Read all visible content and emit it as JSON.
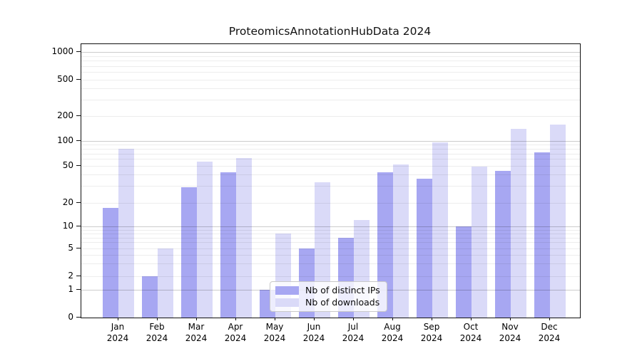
{
  "title": "ProteomicsAnnotationHubData 2024",
  "year_label": "2024",
  "legend": {
    "items": [
      {
        "label": "Nb of distinct IPs",
        "color": "#a7a7f2"
      },
      {
        "label": "Nb of downloads",
        "color": "#dadaf8"
      }
    ]
  },
  "chart_data": {
    "type": "bar",
    "title": "ProteomicsAnnotationHubData 2024",
    "categories": [
      "Jan 2024",
      "Feb 2024",
      "Mar 2024",
      "Apr 2024",
      "May 2024",
      "Jun 2024",
      "Jul 2024",
      "Aug 2024",
      "Sep 2024",
      "Oct 2024",
      "Nov 2024",
      "Dec 2024"
    ],
    "month_labels": [
      "Jan",
      "Feb",
      "Mar",
      "Apr",
      "May",
      "Jun",
      "Jul",
      "Aug",
      "Sep",
      "Oct",
      "Nov",
      "Dec"
    ],
    "series": [
      {
        "name": "Nb of distinct IPs",
        "color": "#a7a7f2",
        "values": [
          17,
          2,
          29,
          42,
          1,
          5,
          7,
          42,
          36,
          10,
          44,
          72
        ]
      },
      {
        "name": "Nb of downloads",
        "color": "#dadaf8",
        "values": [
          80,
          5,
          56,
          61,
          8,
          33,
          12,
          52,
          95,
          49,
          140,
          155
        ]
      }
    ],
    "xlabel": "",
    "ylabel": "",
    "yscale": "log-like (0,1,2,5,10,20,50,100,200,500,1000)",
    "y_ticks": [
      0,
      1,
      2,
      5,
      10,
      20,
      50,
      100,
      200,
      500,
      1000
    ],
    "ylim": [
      0,
      1200
    ],
    "grid": true,
    "legend_position": "inside bottom-center"
  }
}
